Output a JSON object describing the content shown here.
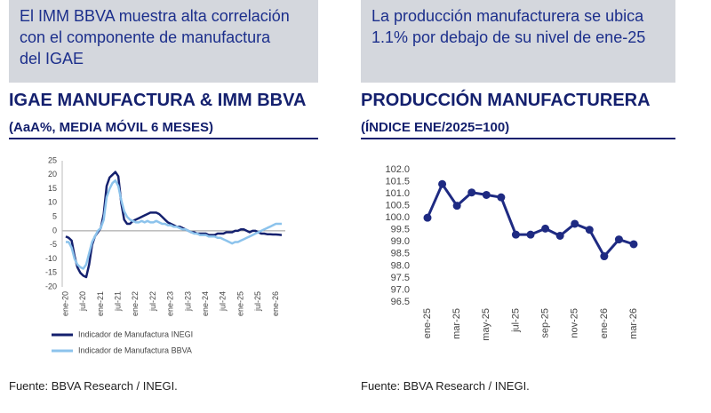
{
  "chart_data": [
    {
      "type": "line",
      "header": [
        "El IMM BBVA muestra alta correlación",
        "con el componente de manufactura",
        "del IGAE"
      ],
      "title": "IGAE MANUFACTURA & IMM BBVA",
      "subtitle": "(AaA%, MEDIA MÓVIL 6 MESES)",
      "source": "Fuente: BBVA Research / INEGI.",
      "categories": [
        "ene-20",
        null,
        null,
        null,
        null,
        null,
        "jul-20",
        null,
        null,
        null,
        null,
        null,
        "ene-21",
        null,
        null,
        null,
        null,
        null,
        "jul-21",
        null,
        null,
        null,
        null,
        null,
        "ene-22",
        null,
        null,
        null,
        null,
        null,
        "jul-22",
        null,
        null,
        null,
        null,
        null,
        "ene-23",
        null,
        null,
        null,
        null,
        null,
        "jul-23",
        null,
        null,
        null,
        null,
        null,
        "ene-24",
        null,
        null,
        null,
        null,
        null,
        "jul-24",
        null,
        null,
        null,
        null,
        null,
        "ene-25",
        null,
        null,
        null,
        null,
        null,
        "jul-25",
        null,
        null,
        null,
        null,
        null,
        "ene-26",
        null,
        null
      ],
      "series": [
        {
          "name": "Indicador de Manufactura INEGI",
          "color": "#14206e",
          "values": [
            -2,
            -2.5,
            -3.5,
            -9,
            -13,
            -15,
            -16,
            -16.5,
            -12,
            -5,
            -2,
            -0.5,
            1,
            6,
            16,
            19,
            20,
            21,
            19.5,
            10,
            4,
            2.5,
            2.5,
            3.5,
            4,
            4.5,
            5,
            5.5,
            6,
            6.5,
            6.5,
            6.5,
            6,
            5,
            4,
            3,
            2.5,
            2,
            1.5,
            1.5,
            1,
            0.5,
            0,
            -0.5,
            -0.5,
            -1,
            -1,
            -1,
            -1,
            -1.5,
            -1.5,
            -1.5,
            -1,
            -1,
            -1,
            -0.5,
            -0.5,
            -0.5,
            0,
            0,
            0.5,
            0.5,
            0,
            -0.5,
            0,
            0,
            -0.5,
            -1,
            -1,
            -1.2,
            -1.2,
            -1.3,
            -1.3,
            -1.4,
            -1.5
          ]
        },
        {
          "name": "Indicador de Manufactura BBVA",
          "color": "#8cc3ec",
          "values": [
            -4,
            -4,
            -6,
            -10,
            -12,
            -13,
            -13.5,
            -12,
            -8,
            -4,
            -2,
            0,
            1,
            4,
            12,
            15,
            17,
            18,
            16,
            11,
            7,
            5,
            4,
            3.5,
            3,
            3,
            3.5,
            3,
            3.5,
            3,
            3,
            3.5,
            3,
            2.5,
            2.5,
            2,
            2,
            1.5,
            1.5,
            1,
            0.5,
            0.5,
            0,
            -0.5,
            -1,
            -1,
            -1.5,
            -1.5,
            -1.5,
            -2,
            -2,
            -2,
            -2.5,
            -2.5,
            -3,
            -3.5,
            -4,
            -4.5,
            -4,
            -4,
            -3.5,
            -3,
            -2.5,
            -2,
            -1.5,
            -1,
            -0.5,
            0,
            0.5,
            1,
            1.5,
            2,
            2.5,
            2.5,
            2.5
          ]
        }
      ],
      "ylim": [
        -20,
        25
      ],
      "yticks": [
        -20,
        -15,
        -10,
        -5,
        0,
        5,
        10,
        15,
        20,
        25
      ],
      "markers": false,
      "legend": "bottom-left"
    },
    {
      "type": "line",
      "header": [
        "La producción manufacturera se ubica",
        "1.1% por debajo de su nivel de ene-25"
      ],
      "title": "PRODUCCIÓN MANUFACTURERA",
      "subtitle": "(ÍNDICE ENE/2025=100)",
      "source": "Fuente: BBVA Research / INEGI.",
      "categories": [
        "ene-25",
        null,
        "mar-25",
        null,
        "may-25",
        null,
        "jul-25",
        null,
        "sep-25",
        null,
        "nov-25",
        null,
        "ene-26",
        null,
        "mar-26"
      ],
      "series": [
        {
          "color": "#1e2a82",
          "values": [
            100.0,
            101.4,
            100.5,
            101.05,
            100.95,
            100.85,
            99.3,
            99.3,
            99.55,
            99.25,
            99.75,
            99.5,
            98.4,
            99.1,
            98.9
          ]
        }
      ],
      "ylim": [
        96.5,
        102
      ],
      "yticks": [
        96.5,
        {
          "value": 97,
          "label": "97.0"
        },
        97.5,
        {
          "value": 98,
          "label": "98.0"
        },
        98.5,
        {
          "value": 99,
          "label": "99.0"
        },
        99.5,
        {
          "value": 100,
          "label": "100.0"
        },
        100.5,
        {
          "value": 101,
          "label": "101.0"
        },
        101.5,
        {
          "value": 102,
          "label": "102.0"
        }
      ],
      "markers": true
    }
  ]
}
